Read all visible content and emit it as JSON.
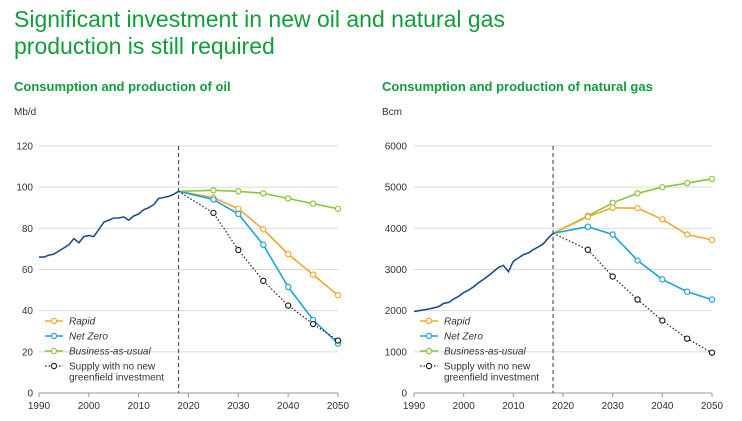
{
  "page": {
    "title_line1": "Significant investment in new oil and natural gas",
    "title_line2": "production is still required"
  },
  "colors": {
    "title": "#119d3a",
    "history": "#1f4e8c",
    "rapid": "#f0a830",
    "net_zero": "#1ca6d6",
    "business_as_usual": "#8cc43c",
    "supply_no_investment": "#222222",
    "divider": "#555555"
  },
  "chart_data": [
    {
      "id": "oil",
      "type": "line",
      "title": "Consumption and production of oil",
      "ylabel": "Mb/d",
      "xlim": [
        1990,
        2050
      ],
      "ylim": [
        0,
        120
      ],
      "xticks": [
        1990,
        2000,
        2010,
        2020,
        2030,
        2040,
        2050
      ],
      "yticks": [
        0,
        20,
        40,
        60,
        80,
        100,
        120
      ],
      "grid": "horizontal",
      "divider_year": 2018,
      "legend_position": "bottom-left",
      "series": [
        {
          "key": "history",
          "x": [
            1990,
            1991,
            1992,
            1993,
            1994,
            1995,
            1996,
            1997,
            1998,
            1999,
            2000,
            2001,
            2002,
            2003,
            2004,
            2005,
            2006,
            2007,
            2008,
            2009,
            2010,
            2011,
            2012,
            2013,
            2014,
            2015,
            2016,
            2017,
            2018
          ],
          "values": [
            66,
            66,
            67,
            67.5,
            69,
            70.5,
            72,
            75,
            73,
            76,
            76.5,
            76,
            79.5,
            83,
            84,
            85,
            85,
            85.5,
            84,
            86,
            87,
            89,
            90,
            91.5,
            94.5,
            95,
            95.5,
            96.5,
            98
          ]
        },
        {
          "key": "business_as_usual",
          "name": "Business-as-usual",
          "x": [
            2018,
            2025,
            2030,
            2035,
            2040,
            2045,
            2050
          ],
          "values": [
            98,
            98.5,
            98,
            97,
            94.5,
            92,
            89.5
          ]
        },
        {
          "key": "rapid",
          "name": "Rapid",
          "x": [
            2018,
            2025,
            2030,
            2035,
            2040,
            2045,
            2050
          ],
          "values": [
            98,
            95,
            89.5,
            79.5,
            67.5,
            57.5,
            47.5
          ]
        },
        {
          "key": "net_zero",
          "name": "Net Zero",
          "x": [
            2018,
            2025,
            2030,
            2035,
            2040,
            2045,
            2050
          ],
          "values": [
            98,
            94,
            87,
            72,
            51.5,
            35.5,
            24
          ]
        },
        {
          "key": "supply_no_investment",
          "name": "Supply with no new greenfield investment",
          "x": [
            2018,
            2025,
            2030,
            2035,
            2040,
            2045,
            2050
          ],
          "values": [
            98,
            87.5,
            69.5,
            54.5,
            42.5,
            33.5,
            25.5
          ]
        }
      ]
    },
    {
      "id": "gas",
      "type": "line",
      "title": "Consumption and production of natural gas",
      "ylabel": "Bcm",
      "xlim": [
        1990,
        2050
      ],
      "ylim": [
        0,
        6000
      ],
      "xticks": [
        1990,
        2000,
        2010,
        2020,
        2030,
        2040,
        2050
      ],
      "yticks": [
        0,
        1000,
        2000,
        3000,
        4000,
        5000,
        6000
      ],
      "grid": "horizontal",
      "divider_year": 2018,
      "legend_position": "bottom-left",
      "series": [
        {
          "key": "history",
          "x": [
            1990,
            1991,
            1992,
            1993,
            1994,
            1995,
            1996,
            1997,
            1998,
            1999,
            2000,
            2001,
            2002,
            2003,
            2004,
            2005,
            2006,
            2007,
            2008,
            2009,
            2010,
            2011,
            2012,
            2013,
            2014,
            2015,
            2016,
            2017,
            2018
          ],
          "values": [
            1980,
            2000,
            2020,
            2040,
            2070,
            2100,
            2180,
            2200,
            2280,
            2350,
            2440,
            2500,
            2580,
            2680,
            2760,
            2850,
            2950,
            3050,
            3100,
            2950,
            3200,
            3280,
            3360,
            3400,
            3480,
            3550,
            3620,
            3760,
            3880
          ]
        },
        {
          "key": "business_as_usual",
          "name": "Business-as-usual",
          "x": [
            2018,
            2025,
            2030,
            2035,
            2040,
            2045,
            2050
          ],
          "values": [
            3880,
            4300,
            4620,
            4850,
            5000,
            5100,
            5200
          ]
        },
        {
          "key": "rapid",
          "name": "Rapid",
          "x": [
            2018,
            2025,
            2030,
            2035,
            2040,
            2045,
            2050
          ],
          "values": [
            3880,
            4280,
            4500,
            4490,
            4220,
            3850,
            3720
          ]
        },
        {
          "key": "net_zero",
          "name": "Net Zero",
          "x": [
            2018,
            2025,
            2030,
            2035,
            2040,
            2045,
            2050
          ],
          "values": [
            3880,
            4040,
            3850,
            3220,
            2760,
            2460,
            2270
          ]
        },
        {
          "key": "supply_no_investment",
          "name": "Supply with no new greenfield investment",
          "x": [
            2018,
            2025,
            2030,
            2035,
            2040,
            2045,
            2050
          ],
          "values": [
            3880,
            3480,
            2830,
            2270,
            1760,
            1320,
            980
          ]
        }
      ]
    }
  ],
  "legend": {
    "rapid": "Rapid",
    "net_zero": "Net Zero",
    "business_as_usual": "Business-as-usual",
    "supply_line1": "Supply with no new",
    "supply_line2": "greenfield investment"
  }
}
